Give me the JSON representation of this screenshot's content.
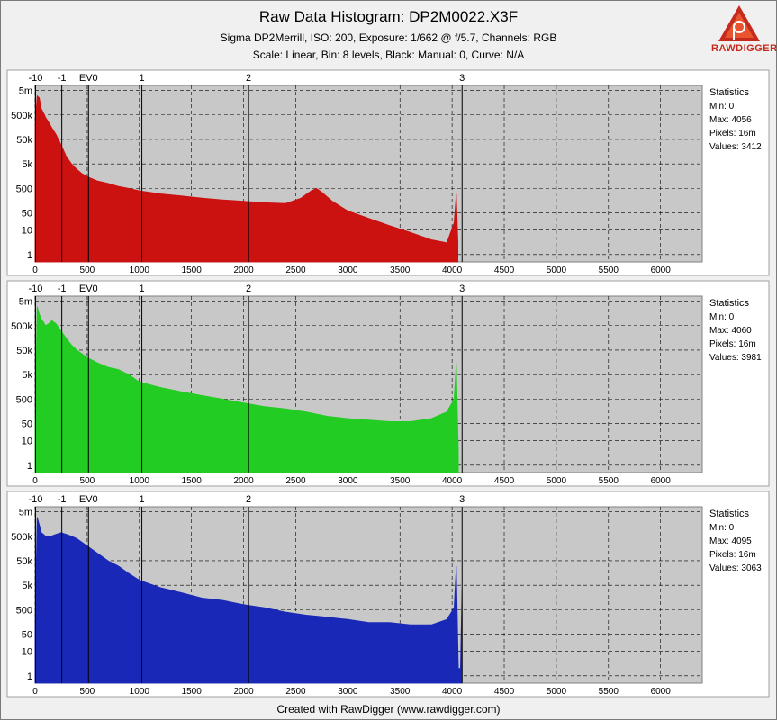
{
  "header": {
    "title": "Raw Data Histogram: DP2M0022.X3F",
    "subtitle": "Sigma DP2Merrill, ISO: 200, Exposure: 1/662 @ f/5.7, Channels: RGB",
    "scale_line": "Scale: Linear, Bin: 8 levels, Black: Manual: 0, Curve: N/A"
  },
  "logo": {
    "text": "RAWDIGGER",
    "icon": "rawdigger-logo-icon",
    "color": "#c62a1c"
  },
  "footer": {
    "text": "Created with RawDigger (www.rawdigger.com)"
  },
  "colors": {
    "red": "#cc1111",
    "green": "#22cc22",
    "blue": "#1a28b8",
    "plot_bg": "#c8c8c8",
    "panel_bg": "#ffffff"
  },
  "chart_data": [
    {
      "type": "area",
      "channel": "red",
      "x_ticks": [
        0,
        500,
        1000,
        1500,
        2000,
        2500,
        3000,
        3500,
        4000,
        4500,
        5000,
        5500,
        6000
      ],
      "y_ticks": [
        "5m",
        "500k",
        "50k",
        "5k",
        "500",
        "50",
        "10",
        "1"
      ],
      "y_tick_values": [
        5000000,
        500000,
        50000,
        5000,
        500,
        50,
        10,
        1
      ],
      "ev_ticks": [
        {
          "label": "-10",
          "x": 4
        },
        {
          "label": "-1",
          "x": 256
        },
        {
          "label": "EV0",
          "x": 512
        },
        {
          "label": "1",
          "x": 1024
        },
        {
          "label": "2",
          "x": 2048
        },
        {
          "label": "3",
          "x": 4096
        }
      ],
      "xlim": [
        0,
        6400
      ],
      "grid": true,
      "statistics": {
        "title": "Statistics",
        "lines": [
          "Min: 0",
          "Max: 4056",
          "Pixels: 16m",
          "Values: 3412"
        ]
      },
      "x": [
        0,
        20,
        40,
        60,
        80,
        100,
        130,
        160,
        200,
        250,
        300,
        350,
        400,
        450,
        500,
        600,
        700,
        800,
        900,
        1000,
        1200,
        1400,
        1600,
        1800,
        2000,
        2200,
        2400,
        2550,
        2650,
        2700,
        2750,
        2850,
        3000,
        3200,
        3400,
        3600,
        3800,
        3950,
        4020,
        4040,
        4056
      ],
      "y": [
        200000,
        3000000,
        2500000,
        900000,
        600000,
        400000,
        250000,
        150000,
        80000,
        30000,
        10000,
        5000,
        3000,
        2000,
        1500,
        1000,
        800,
        600,
        500,
        400,
        300,
        250,
        200,
        170,
        150,
        130,
        120,
        200,
        400,
        500,
        350,
        150,
        60,
        30,
        15,
        8,
        4,
        3,
        20,
        300,
        3
      ]
    },
    {
      "type": "area",
      "channel": "green",
      "x_ticks": [
        0,
        500,
        1000,
        1500,
        2000,
        2500,
        3000,
        3500,
        4000,
        4500,
        5000,
        5500,
        6000
      ],
      "y_ticks": [
        "5m",
        "500k",
        "50k",
        "5k",
        "500",
        "50",
        "10",
        "1"
      ],
      "y_tick_values": [
        5000000,
        500000,
        50000,
        5000,
        500,
        50,
        10,
        1
      ],
      "ev_ticks": [
        {
          "label": "-10",
          "x": 4
        },
        {
          "label": "-1",
          "x": 256
        },
        {
          "label": "EV0",
          "x": 512
        },
        {
          "label": "1",
          "x": 1024
        },
        {
          "label": "2",
          "x": 2048
        },
        {
          "label": "3",
          "x": 4096
        }
      ],
      "xlim": [
        0,
        6400
      ],
      "grid": true,
      "statistics": {
        "title": "Statistics",
        "lines": [
          "Min: 0",
          "Max: 4060",
          "Pixels: 16m",
          "Values: 3981"
        ]
      },
      "x": [
        0,
        20,
        40,
        60,
        80,
        100,
        130,
        160,
        200,
        250,
        300,
        350,
        400,
        500,
        600,
        700,
        800,
        900,
        1000,
        1200,
        1400,
        1600,
        1800,
        2000,
        2200,
        2400,
        2600,
        2800,
        3000,
        3200,
        3400,
        3600,
        3800,
        3950,
        4020,
        4040,
        4060
      ],
      "y": [
        50,
        3000000,
        1500000,
        900000,
        700000,
        500000,
        600000,
        800000,
        600000,
        300000,
        150000,
        80000,
        50000,
        25000,
        15000,
        10000,
        8000,
        5000,
        2500,
        1500,
        1000,
        700,
        500,
        350,
        250,
        200,
        150,
        100,
        80,
        70,
        60,
        60,
        80,
        150,
        500,
        15000,
        3
      ]
    },
    {
      "type": "area",
      "channel": "blue",
      "x_ticks": [
        0,
        500,
        1000,
        1500,
        2000,
        2500,
        3000,
        3500,
        4000,
        4500,
        5000,
        5500,
        6000
      ],
      "y_ticks": [
        "5m",
        "500k",
        "50k",
        "5k",
        "500",
        "50",
        "10",
        "1"
      ],
      "y_tick_values": [
        5000000,
        500000,
        50000,
        5000,
        500,
        50,
        10,
        1
      ],
      "ev_ticks": [
        {
          "label": "-10",
          "x": 4
        },
        {
          "label": "-1",
          "x": 256
        },
        {
          "label": "EV0",
          "x": 512
        },
        {
          "label": "1",
          "x": 1024
        },
        {
          "label": "2",
          "x": 2048
        },
        {
          "label": "3",
          "x": 4096
        }
      ],
      "xlim": [
        0,
        6400
      ],
      "grid": true,
      "statistics": {
        "title": "Statistics",
        "lines": [
          "Min: 0",
          "Max: 4095",
          "Pixels: 16m",
          "Values: 3063"
        ]
      },
      "x": [
        0,
        20,
        40,
        60,
        80,
        100,
        150,
        200,
        250,
        300,
        350,
        400,
        500,
        600,
        700,
        800,
        900,
        1000,
        1200,
        1400,
        1600,
        1800,
        2000,
        2200,
        2400,
        2600,
        2800,
        3000,
        3200,
        3400,
        3600,
        3800,
        3950,
        4020,
        4040,
        4060,
        4080,
        4095
      ],
      "y": [
        100,
        3000000,
        1500000,
        700000,
        600000,
        500000,
        500000,
        600000,
        700000,
        600000,
        500000,
        400000,
        200000,
        100000,
        50000,
        30000,
        15000,
        8000,
        4000,
        2500,
        1500,
        1200,
        800,
        600,
        400,
        300,
        250,
        200,
        150,
        150,
        120,
        120,
        200,
        600,
        30000,
        2,
        2,
        3000
      ]
    }
  ]
}
